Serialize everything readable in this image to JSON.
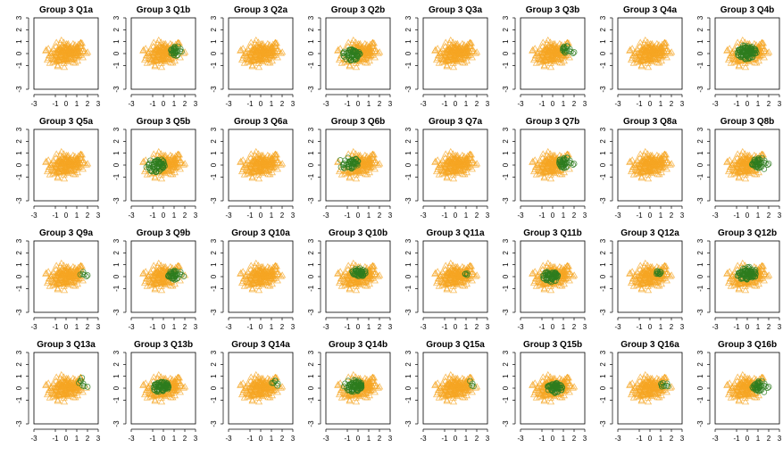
{
  "figure": {
    "colors": {
      "triangle": "#f5a623",
      "circle": "#2e7d1f",
      "axis": "#000000",
      "background": "#ffffff"
    },
    "marker_legend": {
      "triangle": "triangle-marker",
      "circle": "circle-marker"
    }
  },
  "chart_data": [
    {
      "type": "scatter",
      "title": "Group 3 Q1a",
      "x_ticks": [
        "-3",
        "-1",
        "0",
        "1",
        "2",
        "3"
      ],
      "y_ticks": [
        "-3",
        "-1",
        "0",
        "1",
        "2",
        "3"
      ],
      "xlim": [
        -3,
        3
      ],
      "ylim": [
        -3,
        3
      ],
      "circle_center": [
        0.0,
        0.0
      ],
      "circle_count": 0
    },
    {
      "type": "scatter",
      "title": "Group 3 Q1b",
      "x_ticks": [
        "-3",
        "-1",
        "0",
        "1",
        "2",
        "3"
      ],
      "y_ticks": [
        "-3",
        "-1",
        "0",
        "1",
        "2",
        "3"
      ],
      "xlim": [
        -3,
        3
      ],
      "ylim": [
        -3,
        3
      ],
      "circle_center": [
        1.3,
        0.2
      ],
      "circle_count": 28
    },
    {
      "type": "scatter",
      "title": "Group 3 Q2a",
      "x_ticks": [
        "-3",
        "-1",
        "0",
        "1",
        "2",
        "3"
      ],
      "y_ticks": [
        "-3",
        "-1",
        "0",
        "1",
        "2",
        "3"
      ],
      "xlim": [
        -3,
        3
      ],
      "ylim": [
        -3,
        3
      ],
      "circle_center": [
        0.0,
        0.0
      ],
      "circle_count": 0
    },
    {
      "type": "scatter",
      "title": "Group 3 Q2b",
      "x_ticks": [
        "-3",
        "-1",
        "0",
        "1",
        "2",
        "3"
      ],
      "y_ticks": [
        "-3",
        "-1",
        "0",
        "1",
        "2",
        "3"
      ],
      "xlim": [
        -3,
        3
      ],
      "ylim": [
        -3,
        3
      ],
      "circle_center": [
        -0.6,
        -0.1
      ],
      "circle_count": 55
    },
    {
      "type": "scatter",
      "title": "Group 3 Q3a",
      "x_ticks": [
        "-3",
        "-1",
        "0",
        "1",
        "2",
        "3"
      ],
      "y_ticks": [
        "-3",
        "-1",
        "0",
        "1",
        "2",
        "3"
      ],
      "xlim": [
        -3,
        3
      ],
      "ylim": [
        -3,
        3
      ],
      "circle_center": [
        0.0,
        0.0
      ],
      "circle_count": 0
    },
    {
      "type": "scatter",
      "title": "Group 3 Q3b",
      "x_ticks": [
        "-3",
        "-1",
        "0",
        "1",
        "2",
        "3"
      ],
      "y_ticks": [
        "-3",
        "-1",
        "0",
        "1",
        "2",
        "3"
      ],
      "xlim": [
        -3,
        3
      ],
      "ylim": [
        -3,
        3
      ],
      "circle_center": [
        1.6,
        0.4
      ],
      "circle_count": 18
    },
    {
      "type": "scatter",
      "title": "Group 3 Q4a",
      "x_ticks": [
        "-3",
        "-1",
        "0",
        "1",
        "2",
        "3"
      ],
      "y_ticks": [
        "-3",
        "-1",
        "0",
        "1",
        "2",
        "3"
      ],
      "xlim": [
        -3,
        3
      ],
      "ylim": [
        -3,
        3
      ],
      "circle_center": [
        0.0,
        0.0
      ],
      "circle_count": 0
    },
    {
      "type": "scatter",
      "title": "Group 3 Q4b",
      "x_ticks": [
        "-3",
        "-1",
        "0",
        "1",
        "2",
        "3"
      ],
      "y_ticks": [
        "-3",
        "-1",
        "0",
        "1",
        "2",
        "3"
      ],
      "xlim": [
        -3,
        3
      ],
      "ylim": [
        -3,
        3
      ],
      "circle_center": [
        -0.1,
        0.1
      ],
      "circle_count": 95
    },
    {
      "type": "scatter",
      "title": "Group 3 Q5a",
      "x_ticks": [
        "-3",
        "-1",
        "0",
        "1",
        "2",
        "3"
      ],
      "y_ticks": [
        "-3",
        "-1",
        "0",
        "1",
        "2",
        "3"
      ],
      "xlim": [
        -3,
        3
      ],
      "ylim": [
        -3,
        3
      ],
      "circle_center": [
        0.0,
        0.0
      ],
      "circle_count": 0
    },
    {
      "type": "scatter",
      "title": "Group 3 Q5b",
      "x_ticks": [
        "-3",
        "-1",
        "0",
        "1",
        "2",
        "3"
      ],
      "y_ticks": [
        "-3",
        "-1",
        "0",
        "1",
        "2",
        "3"
      ],
      "xlim": [
        -3,
        3
      ],
      "ylim": [
        -3,
        3
      ],
      "circle_center": [
        -0.8,
        0.0
      ],
      "circle_count": 60
    },
    {
      "type": "scatter",
      "title": "Group 3 Q6a",
      "x_ticks": [
        "-3",
        "-1",
        "0",
        "1",
        "2",
        "3"
      ],
      "y_ticks": [
        "-3",
        "-1",
        "0",
        "1",
        "2",
        "3"
      ],
      "xlim": [
        -3,
        3
      ],
      "ylim": [
        -3,
        3
      ],
      "circle_center": [
        0.0,
        0.0
      ],
      "circle_count": 0
    },
    {
      "type": "scatter",
      "title": "Group 3 Q6b",
      "x_ticks": [
        "-3",
        "-1",
        "0",
        "1",
        "2",
        "3"
      ],
      "y_ticks": [
        "-3",
        "-1",
        "0",
        "1",
        "2",
        "3"
      ],
      "xlim": [
        -3,
        3
      ],
      "ylim": [
        -3,
        3
      ],
      "circle_center": [
        -0.9,
        0.2
      ],
      "circle_count": 45
    },
    {
      "type": "scatter",
      "title": "Group 3 Q7a",
      "x_ticks": [
        "-3",
        "-1",
        "0",
        "1",
        "2",
        "3"
      ],
      "y_ticks": [
        "-3",
        "-1",
        "0",
        "1",
        "2",
        "3"
      ],
      "xlim": [
        -3,
        3
      ],
      "ylim": [
        -3,
        3
      ],
      "circle_center": [
        0.0,
        0.0
      ],
      "circle_count": 0
    },
    {
      "type": "scatter",
      "title": "Group 3 Q7b",
      "x_ticks": [
        "-3",
        "-1",
        "0",
        "1",
        "2",
        "3"
      ],
      "y_ticks": [
        "-3",
        "-1",
        "0",
        "1",
        "2",
        "3"
      ],
      "xlim": [
        -3,
        3
      ],
      "ylim": [
        -3,
        3
      ],
      "circle_center": [
        1.4,
        0.2
      ],
      "circle_count": 40
    },
    {
      "type": "scatter",
      "title": "Group 3 Q8a",
      "x_ticks": [
        "-3",
        "-1",
        "0",
        "1",
        "2",
        "3"
      ],
      "y_ticks": [
        "-3",
        "-1",
        "0",
        "1",
        "2",
        "3"
      ],
      "xlim": [
        -3,
        3
      ],
      "ylim": [
        -3,
        3
      ],
      "circle_center": [
        0.0,
        0.0
      ],
      "circle_count": 0
    },
    {
      "type": "scatter",
      "title": "Group 3 Q8b",
      "x_ticks": [
        "-3",
        "-1",
        "0",
        "1",
        "2",
        "3"
      ],
      "y_ticks": [
        "-3",
        "-1",
        "0",
        "1",
        "2",
        "3"
      ],
      "xlim": [
        -3,
        3
      ],
      "ylim": [
        -3,
        3
      ],
      "circle_center": [
        1.3,
        0.1
      ],
      "circle_count": 45
    },
    {
      "type": "scatter",
      "title": "Group 3 Q9a",
      "x_ticks": [
        "-3",
        "-1",
        "0",
        "1",
        "2",
        "3"
      ],
      "y_ticks": [
        "-3",
        "-1",
        "0",
        "1",
        "2",
        "3"
      ],
      "xlim": [
        -3,
        3
      ],
      "ylim": [
        -3,
        3
      ],
      "circle_center": [
        1.8,
        0.3
      ],
      "circle_count": 6
    },
    {
      "type": "scatter",
      "title": "Group 3 Q9b",
      "x_ticks": [
        "-3",
        "-1",
        "0",
        "1",
        "2",
        "3"
      ],
      "y_ticks": [
        "-3",
        "-1",
        "0",
        "1",
        "2",
        "3"
      ],
      "xlim": [
        -3,
        3
      ],
      "ylim": [
        -3,
        3
      ],
      "circle_center": [
        1.2,
        0.1
      ],
      "circle_count": 40
    },
    {
      "type": "scatter",
      "title": "Group 3 Q10a",
      "x_ticks": [
        "-3",
        "-1",
        "0",
        "1",
        "2",
        "3"
      ],
      "y_ticks": [
        "-3",
        "-1",
        "0",
        "1",
        "2",
        "3"
      ],
      "xlim": [
        -3,
        3
      ],
      "ylim": [
        -3,
        3
      ],
      "circle_center": [
        0.0,
        0.0
      ],
      "circle_count": 0
    },
    {
      "type": "scatter",
      "title": "Group 3 Q10b",
      "x_ticks": [
        "-3",
        "-1",
        "0",
        "1",
        "2",
        "3"
      ],
      "y_ticks": [
        "-3",
        "-1",
        "0",
        "1",
        "2",
        "3"
      ],
      "xlim": [
        -3,
        3
      ],
      "ylim": [
        -3,
        3
      ],
      "circle_center": [
        0.1,
        0.4
      ],
      "circle_count": 50
    },
    {
      "type": "scatter",
      "title": "Group 3 Q11a",
      "x_ticks": [
        "-3",
        "-1",
        "0",
        "1",
        "2",
        "3"
      ],
      "y_ticks": [
        "-3",
        "-1",
        "0",
        "1",
        "2",
        "3"
      ],
      "xlim": [
        -3,
        3
      ],
      "ylim": [
        -3,
        3
      ],
      "circle_center": [
        1.0,
        0.2
      ],
      "circle_count": 4
    },
    {
      "type": "scatter",
      "title": "Group 3 Q11b",
      "x_ticks": [
        "-3",
        "-1",
        "0",
        "1",
        "2",
        "3"
      ],
      "y_ticks": [
        "-3",
        "-1",
        "0",
        "1",
        "2",
        "3"
      ],
      "xlim": [
        -3,
        3
      ],
      "ylim": [
        -3,
        3
      ],
      "circle_center": [
        -0.2,
        0.0
      ],
      "circle_count": 60
    },
    {
      "type": "scatter",
      "title": "Group 3 Q12a",
      "x_ticks": [
        "-3",
        "-1",
        "0",
        "1",
        "2",
        "3"
      ],
      "y_ticks": [
        "-3",
        "-1",
        "0",
        "1",
        "2",
        "3"
      ],
      "xlim": [
        -3,
        3
      ],
      "ylim": [
        -3,
        3
      ],
      "circle_center": [
        0.8,
        0.3
      ],
      "circle_count": 10
    },
    {
      "type": "scatter",
      "title": "Group 3 Q12b",
      "x_ticks": [
        "-3",
        "-1",
        "0",
        "1",
        "2",
        "3"
      ],
      "y_ticks": [
        "-3",
        "-1",
        "0",
        "1",
        "2",
        "3"
      ],
      "xlim": [
        -3,
        3
      ],
      "ylim": [
        -3,
        3
      ],
      "circle_center": [
        -0.1,
        0.3
      ],
      "circle_count": 85
    },
    {
      "type": "scatter",
      "title": "Group 3 Q13a",
      "x_ticks": [
        "-3",
        "-1",
        "0",
        "1",
        "2",
        "3"
      ],
      "y_ticks": [
        "-3",
        "-1",
        "0",
        "1",
        "2",
        "3"
      ],
      "xlim": [
        -3,
        3
      ],
      "ylim": [
        -3,
        3
      ],
      "circle_center": [
        1.8,
        0.5
      ],
      "circle_count": 8
    },
    {
      "type": "scatter",
      "title": "Group 3 Q13b",
      "x_ticks": [
        "-3",
        "-1",
        "0",
        "1",
        "2",
        "3"
      ],
      "y_ticks": [
        "-3",
        "-1",
        "0",
        "1",
        "2",
        "3"
      ],
      "xlim": [
        -3,
        3
      ],
      "ylim": [
        -3,
        3
      ],
      "circle_center": [
        -0.2,
        0.1
      ],
      "circle_count": 70
    },
    {
      "type": "scatter",
      "title": "Group 3 Q14a",
      "x_ticks": [
        "-3",
        "-1",
        "0",
        "1",
        "2",
        "3"
      ],
      "y_ticks": [
        "-3",
        "-1",
        "0",
        "1",
        "2",
        "3"
      ],
      "xlim": [
        -3,
        3
      ],
      "ylim": [
        -3,
        3
      ],
      "circle_center": [
        1.6,
        0.5
      ],
      "circle_count": 6
    },
    {
      "type": "scatter",
      "title": "Group 3 Q14b",
      "x_ticks": [
        "-3",
        "-1",
        "0",
        "1",
        "2",
        "3"
      ],
      "y_ticks": [
        "-3",
        "-1",
        "0",
        "1",
        "2",
        "3"
      ],
      "xlim": [
        -3,
        3
      ],
      "ylim": [
        -3,
        3
      ],
      "circle_center": [
        -0.5,
        0.2
      ],
      "circle_count": 70
    },
    {
      "type": "scatter",
      "title": "Group 3 Q15a",
      "x_ticks": [
        "-3",
        "-1",
        "0",
        "1",
        "2",
        "3"
      ],
      "y_ticks": [
        "-3",
        "-1",
        "0",
        "1",
        "2",
        "3"
      ],
      "xlim": [
        -3,
        3
      ],
      "ylim": [
        -3,
        3
      ],
      "circle_center": [
        1.9,
        0.5
      ],
      "circle_count": 4
    },
    {
      "type": "scatter",
      "title": "Group 3 Q15b",
      "x_ticks": [
        "-3",
        "-1",
        "0",
        "1",
        "2",
        "3"
      ],
      "y_ticks": [
        "-3",
        "-1",
        "0",
        "1",
        "2",
        "3"
      ],
      "xlim": [
        -3,
        3
      ],
      "ylim": [
        -3,
        3
      ],
      "circle_center": [
        0.2,
        0.0
      ],
      "circle_count": 60
    },
    {
      "type": "scatter",
      "title": "Group 3 Q16a",
      "x_ticks": [
        "-3",
        "-1",
        "0",
        "1",
        "2",
        "3"
      ],
      "y_ticks": [
        "-3",
        "-1",
        "0",
        "1",
        "2",
        "3"
      ],
      "xlim": [
        -3,
        3
      ],
      "ylim": [
        -3,
        3
      ],
      "circle_center": [
        1.4,
        0.3
      ],
      "circle_count": 8
    },
    {
      "type": "scatter",
      "title": "Group 3 Q16b",
      "x_ticks": [
        "-3",
        "-1",
        "0",
        "1",
        "2",
        "3"
      ],
      "y_ticks": [
        "-3",
        "-1",
        "0",
        "1",
        "2",
        "3"
      ],
      "xlim": [
        -3,
        3
      ],
      "ylim": [
        -3,
        3
      ],
      "circle_center": [
        1.3,
        0.1
      ],
      "circle_count": 40
    }
  ]
}
